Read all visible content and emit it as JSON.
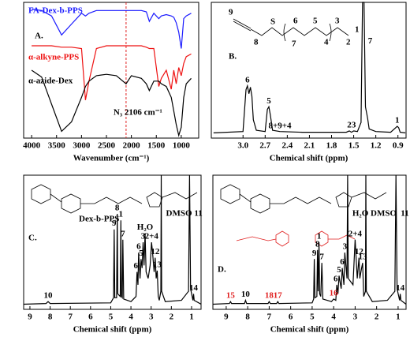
{
  "chart_data": [
    {
      "type": "line",
      "panel_label": "A.",
      "xlabel": "Wavenumber (cm⁻¹)",
      "xlim": [
        4160,
        650
      ],
      "ylim": [
        0,
        100
      ],
      "xticks": [
        4000,
        3500,
        3000,
        2500,
        2000,
        1500,
        1000
      ],
      "marker_line": 2106,
      "marker_label": "N₃ 2106 cm⁻¹",
      "x": [
        4000,
        3800,
        3600,
        3400,
        3200,
        3000,
        2920,
        2850,
        2700,
        2500,
        2300,
        2106,
        2000,
        1800,
        1700,
        1640,
        1550,
        1450,
        1400,
        1300,
        1200,
        1150,
        1100,
        1050,
        1000,
        950,
        900,
        800
      ],
      "series": [
        {
          "name": "FA-Dex-b-PPS",
          "color": "#1a1aff",
          "values": [
            95,
            94,
            90,
            76,
            84,
            92,
            90,
            92,
            94,
            94,
            94,
            94,
            94,
            94,
            93,
            86,
            92,
            88,
            90,
            91,
            90,
            89,
            85,
            78,
            66,
            88,
            90,
            92
          ]
        },
        {
          "name": "α-alkyne-PPS",
          "color": "#ee1111",
          "values": [
            68,
            68,
            68,
            67,
            67,
            66,
            28,
            42,
            66,
            68,
            68,
            68,
            68,
            68,
            67,
            66,
            66,
            38,
            44,
            50,
            36,
            50,
            40,
            52,
            46,
            55,
            60,
            62
          ]
        },
        {
          "name": "α-azide-Dex",
          "color": "#000000",
          "values": [
            50,
            45,
            25,
            5,
            12,
            30,
            38,
            42,
            46,
            47,
            46,
            40,
            46,
            44,
            40,
            35,
            42,
            42,
            40,
            38,
            30,
            20,
            10,
            2,
            8,
            30,
            40,
            44
          ]
        }
      ]
    },
    {
      "type": "line",
      "panel_label": "B.",
      "xlabel": "Chemical shift (ppm)",
      "xlim": [
        3.43,
        0.79
      ],
      "ylim": [
        -4,
        100
      ],
      "xticks": [
        {
          "value": 3,
          "label": "3.0"
        },
        2.7,
        2.4,
        2.1,
        1.8,
        1.5,
        1.2,
        0.9
      ],
      "color": "#000000",
      "x": [
        3.4,
        3.0,
        2.96,
        2.94,
        2.92,
        2.9,
        2.88,
        2.86,
        2.82,
        2.7,
        2.67,
        2.65,
        2.63,
        2.6,
        2.5,
        2.2,
        1.6,
        1.56,
        1.53,
        1.5,
        1.45,
        1.4,
        1.38,
        1.36,
        1.34,
        1.31,
        1.29,
        1.2,
        1.0,
        0.93,
        0.91,
        0.89,
        0.87,
        0.8
      ],
      "values": [
        0,
        1,
        33,
        36,
        30,
        35,
        28,
        10,
        2,
        1,
        18,
        20,
        14,
        2,
        1,
        0.5,
        0.5,
        1.5,
        0.5,
        1.5,
        1,
        8,
        100,
        100,
        20,
        11,
        3,
        1,
        0.5,
        4,
        5,
        4,
        0.5,
        0
      ],
      "peak_labels": [
        {
          "label": "6",
          "x": 2.94
        },
        {
          "label": "5",
          "x": 2.65
        },
        {
          "label": "8+9+4",
          "x": 2.5
        },
        {
          "label": "2",
          "x": 1.56
        },
        {
          "label": "3",
          "x": 1.5
        },
        {
          "label": "7",
          "x": 1.37
        },
        {
          "label": "1",
          "x": 0.91
        }
      ],
      "structure_labels": [
        "9",
        "8",
        "S",
        "7",
        "6",
        "5",
        "4",
        "3",
        "2",
        "1"
      ]
    },
    {
      "type": "line",
      "panel_label": "C.",
      "xlabel": "Chemical shift (ppm)",
      "xlim": [
        9.31,
        0.53
      ],
      "ylim": [
        -4,
        100
      ],
      "xticks": [
        9,
        8,
        7,
        6,
        5,
        4,
        3,
        2,
        1
      ],
      "color": "#000000",
      "structure_name": "Dex-b-PPS",
      "x": [
        9.3,
        8.2,
        8.1,
        8.0,
        5.0,
        4.86,
        4.83,
        4.8,
        4.71,
        4.68,
        4.65,
        4.53,
        4.5,
        4.47,
        4.43,
        4.4,
        4.36,
        4.0,
        3.75,
        3.7,
        3.65,
        3.62,
        3.55,
        3.5,
        3.45,
        3.4,
        3.35,
        3.3,
        3.25,
        3.15,
        3.05,
        2.98,
        2.93,
        2.85,
        2.8,
        2.75,
        2.7,
        2.65,
        2.6,
        2.52,
        2.5,
        2.48,
        2.3,
        1.5,
        1.15,
        1.1,
        1.05,
        0.93,
        0.9,
        0.87,
        0.53
      ],
      "values": [
        0,
        0.5,
        2,
        0.5,
        1,
        5,
        58,
        5,
        5,
        70,
        8,
        6,
        65,
        6,
        5,
        50,
        4,
        2,
        6,
        25,
        15,
        40,
        20,
        35,
        28,
        48,
        30,
        55,
        25,
        20,
        30,
        48,
        40,
        25,
        36,
        20,
        26,
        6,
        3,
        10,
        100,
        10,
        2,
        3,
        10,
        100,
        12,
        3,
        8,
        3,
        0
      ],
      "peak_labels": [
        {
          "label": "10",
          "x": 8.1
        },
        {
          "label": "9",
          "x": 4.83
        },
        {
          "label": "8",
          "x": 4.68
        },
        {
          "label": "1",
          "x": 4.5
        },
        {
          "label": "7",
          "x": 4.4
        },
        {
          "label": "6'",
          "x": 3.7
        },
        {
          "label": "5",
          "x": 3.5
        },
        {
          "label": "6",
          "x": 3.62
        },
        {
          "label": "3",
          "x": 3.4
        },
        {
          "label": "H₂O",
          "x": 3.3
        },
        {
          "label": "2+4",
          "x": 2.98
        },
        {
          "label": "12",
          "x": 2.8
        },
        {
          "label": "13",
          "x": 2.7
        },
        {
          "label": "DMSO",
          "x": 2.5
        },
        {
          "label": "11",
          "x": 1.1
        },
        {
          "label": "14",
          "x": 0.9
        }
      ]
    },
    {
      "type": "line",
      "panel_label": "D.",
      "xlabel": "Chemical shift (ppm)",
      "xlim": [
        9.62,
        0.63
      ],
      "ylim": [
        -4,
        100
      ],
      "xticks": [
        9,
        8,
        7,
        6,
        5,
        4,
        3,
        2,
        1
      ],
      "color": "#000000",
      "x": [
        9.6,
        8.85,
        8.8,
        8.75,
        8.15,
        8.1,
        8.05,
        7.05,
        7.0,
        6.95,
        6.65,
        6.6,
        6.55,
        5.0,
        4.93,
        4.9,
        4.87,
        4.78,
        4.75,
        4.72,
        4.68,
        4.65,
        4.6,
        4.55,
        4.5,
        4.1,
        4.0,
        3.9,
        3.85,
        3.8,
        3.75,
        3.65,
        3.6,
        3.52,
        3.48,
        3.38,
        3.35,
        3.32,
        3.1,
        3.0,
        2.9,
        2.82,
        2.78,
        2.7,
        2.65,
        2.6,
        2.52,
        2.5,
        2.48,
        2.2,
        1.5,
        1.15,
        1.1,
        1.05,
        0.93,
        0.9,
        0.87,
        0.63
      ],
      "values": [
        0,
        0.5,
        2,
        0.5,
        0.5,
        3,
        0.5,
        0.5,
        2,
        0.5,
        0.5,
        2,
        0.5,
        1,
        4,
        35,
        5,
        6,
        42,
        10,
        48,
        8,
        6,
        32,
        4,
        2,
        4,
        3,
        15,
        8,
        22,
        12,
        28,
        15,
        40,
        20,
        100,
        20,
        15,
        50,
        20,
        36,
        20,
        28,
        32,
        6,
        10,
        100,
        10,
        2,
        3,
        10,
        100,
        12,
        3,
        8,
        3,
        0
      ],
      "peak_labels": [
        {
          "label": "15",
          "x": 8.8,
          "color": "#e02020"
        },
        {
          "label": "10",
          "x": 8.1
        },
        {
          "label": "18",
          "x": 7.0,
          "color": "#e02020"
        },
        {
          "label": "17",
          "x": 6.6,
          "color": "#e02020"
        },
        {
          "label": "9",
          "x": 4.9
        },
        {
          "label": "8",
          "x": 4.75
        },
        {
          "label": "1",
          "x": 4.68
        },
        {
          "label": "7",
          "x": 4.55
        },
        {
          "label": "16",
          "x": 4.0,
          "color": "#e02020"
        },
        {
          "label": "6'",
          "x": 3.85
        },
        {
          "label": "5",
          "x": 3.75
        },
        {
          "label": "6",
          "x": 3.6
        },
        {
          "label": "3",
          "x": 3.48
        },
        {
          "label": "H₂O",
          "x": 3.35
        },
        {
          "label": "2+4",
          "x": 3.0
        },
        {
          "label": "12",
          "x": 2.82
        },
        {
          "label": "13",
          "x": 2.65
        },
        {
          "label": "DMSO",
          "x": 2.5
        },
        {
          "label": "11",
          "x": 1.1
        },
        {
          "label": "14",
          "x": 0.9
        }
      ]
    }
  ]
}
